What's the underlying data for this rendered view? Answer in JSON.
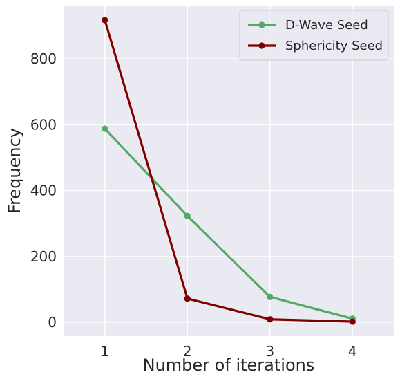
{
  "chart_data": {
    "type": "line",
    "title": "",
    "xlabel": "Number of iterations",
    "ylabel": "Frequency",
    "x": [
      1,
      2,
      3,
      4
    ],
    "xlim": [
      0.5,
      4.5
    ],
    "ylim": [
      -42,
      962
    ],
    "xticks": [
      1,
      2,
      3,
      4
    ],
    "yticks": [
      0,
      200,
      400,
      600,
      800
    ],
    "grid": true,
    "background_color": "#eaeaf2",
    "grid_color": "#ffffff",
    "legend_position": "top-right",
    "series": [
      {
        "name": "D-Wave Seed",
        "values": [
          588,
          323,
          77,
          11
        ],
        "color": "#55a868",
        "marker": "circle"
      },
      {
        "name": "Sphericity Seed",
        "values": [
          918,
          72,
          9,
          2
        ],
        "color": "#800000",
        "marker": "circle"
      }
    ]
  }
}
